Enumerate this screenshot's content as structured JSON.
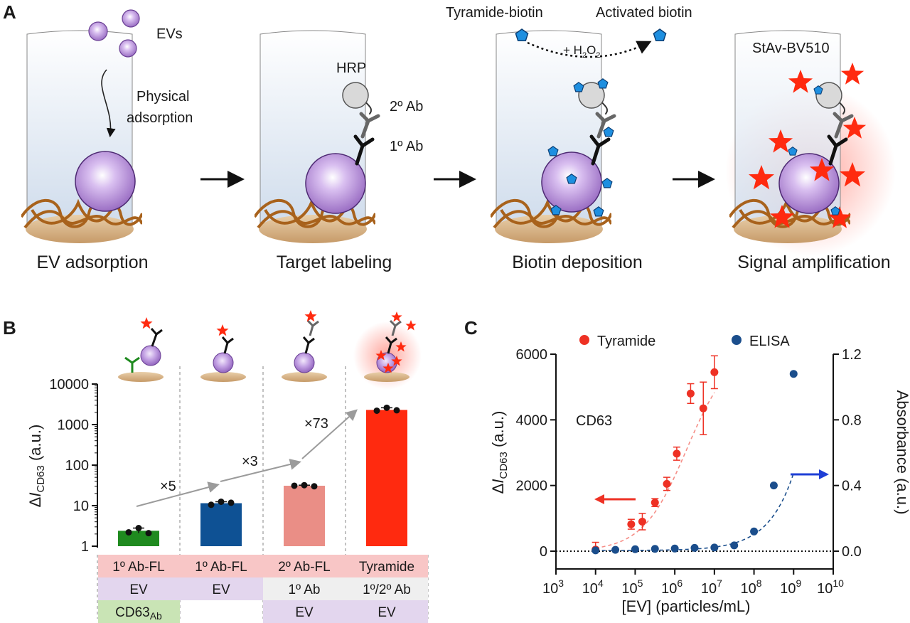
{
  "panel_a": {
    "label": "A",
    "steps": [
      {
        "caption": "EV adsorption"
      },
      {
        "caption": "Target labeling"
      },
      {
        "caption": "Biotin deposition"
      },
      {
        "caption": "Signal amplification"
      }
    ],
    "evs_label": "EVs",
    "physical_label_1": "Physical",
    "physical_label_2": "adsorption",
    "hrp_label": "HRP",
    "ab2_label": "2º Ab",
    "ab1_label": "1º Ab",
    "tyramide_biotin": "Tyramide-biotin",
    "activated_biotin": "Activated biotin",
    "h2o2_prefix": "+ H",
    "h2o2_sub1": "2",
    "h2o2_o": "O",
    "h2o2_sub2": "2",
    "stav": "StAv-BV510"
  },
  "panel_b": {
    "label": "B",
    "ylabel_prefix": "Δ",
    "ylabel_i": "I",
    "ylabel_sub": "CD63",
    "ylabel_suffix": " (a.u.)",
    "fold_labels": [
      "×5",
      "×3",
      "×73"
    ],
    "table": {
      "row1": [
        "1º Ab-FL",
        "1º Ab-FL",
        "2º Ab-FL",
        "Tyramide"
      ],
      "row2": [
        "EV",
        "EV",
        "1º Ab",
        "1º/2º Ab"
      ],
      "row3": [
        "CD63",
        "",
        "EV",
        "EV"
      ],
      "row3_sub": "Ab"
    }
  },
  "panel_c": {
    "label": "C",
    "legend": [
      "Tyramide",
      "ELISA"
    ],
    "annotation": "CD63",
    "xlabel": "[EV] (particles/mL)",
    "ylabel_left_prefix": "Δ",
    "ylabel_left_i": "I",
    "ylabel_left_sub": "CD63",
    "ylabel_left_suffix": " (a.u.)",
    "ylabel_right": "Absorbance (a.u.)"
  },
  "chart_data": [
    {
      "type": "bar",
      "scale": "log",
      "categories": [
        "1º Ab-FL / EV / CD63Ab",
        "1º Ab-FL / EV",
        "2º Ab-FL / 1º Ab / EV",
        "Tyramide / 1º/2º Ab / EV"
      ],
      "values": [
        2.4,
        11.5,
        31,
        2300
      ],
      "points": [
        [
          2.2,
          2.8,
          2.1
        ],
        [
          10.5,
          12.5,
          11.8
        ],
        [
          31,
          32,
          30
        ],
        [
          2200,
          2600,
          2250
        ]
      ],
      "colors": [
        "#1f8a1f",
        "#0e5194",
        "#ea8e86",
        "#ff2a0f"
      ],
      "ylim": [
        1,
        10000
      ],
      "yticks": [
        "1",
        "10",
        "100",
        "1000",
        "10000"
      ],
      "ylabel": "ΔICD63 (a.u.)",
      "fold_changes": [
        "×5",
        "×3",
        "×73"
      ]
    },
    {
      "type": "scatter",
      "x_scale": "log",
      "xlim_exp": [
        3,
        10
      ],
      "xticks_exp": [
        "3",
        "4",
        "5",
        "6",
        "7",
        "8",
        "9",
        "10"
      ],
      "xlabel": "[EV] (particles/mL)",
      "ylabel_left": "ΔICD63 (a.u.)",
      "ylim_left": [
        0,
        6000
      ],
      "yticks_left": [
        "0",
        "2000",
        "4000",
        "6000"
      ],
      "ylabel_right": "Absorbance (a.u.)",
      "ylim_right": [
        0,
        1.2
      ],
      "yticks_right": [
        "0.0",
        "0.4",
        "0.8",
        "1.2"
      ],
      "series": [
        {
          "name": "Tyramide",
          "color": "#ee3124",
          "axis": "left",
          "x_log": [
            4,
            4.9,
            5.18,
            5.5,
            5.8,
            6.05,
            6.4,
            6.72,
            7.0
          ],
          "y": [
            50,
            820,
            900,
            1480,
            2050,
            2970,
            4800,
            4350,
            5450
          ],
          "err": [
            220,
            150,
            250,
            120,
            200,
            200,
            300,
            800,
            500
          ]
        },
        {
          "name": "ELISA",
          "color": "#1b4e8c",
          "axis": "right",
          "x_log": [
            4,
            4.5,
            5,
            5.5,
            6,
            6.5,
            7,
            7.5,
            8,
            8.5,
            9
          ],
          "y": [
            0.005,
            0.008,
            0.012,
            0.014,
            0.016,
            0.02,
            0.022,
            0.035,
            0.12,
            0.4,
            1.08
          ]
        }
      ]
    }
  ]
}
